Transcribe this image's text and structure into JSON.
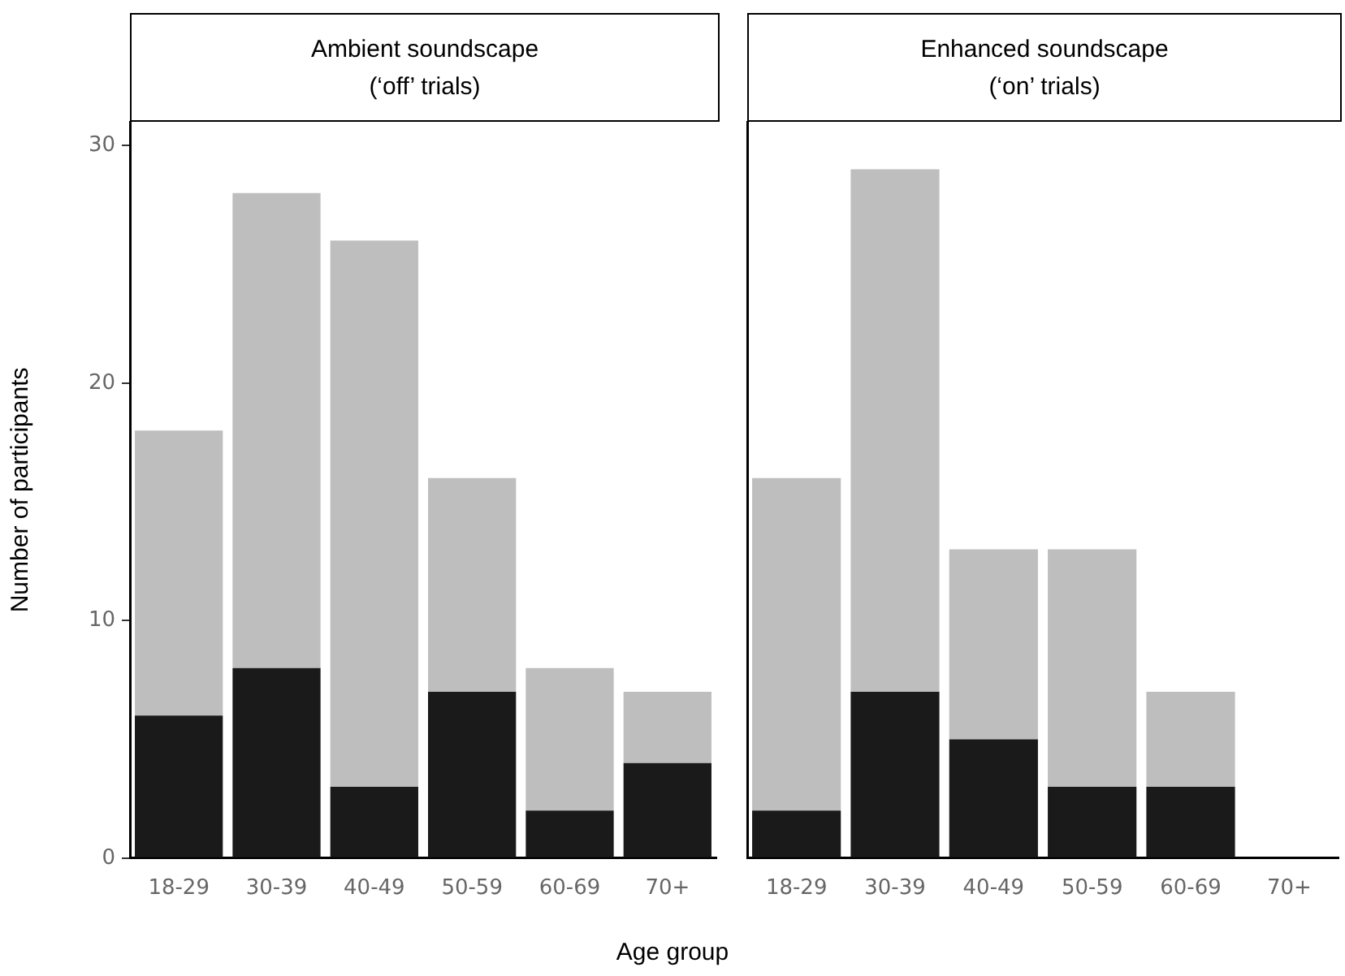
{
  "chart_data": [
    {
      "type": "bar",
      "title": "Ambient soundscape\n(‘off’ trials)",
      "xlabel": "Age group",
      "ylabel": "Number of participants",
      "categories": [
        "18-29",
        "30-39",
        "40-49",
        "50-59",
        "60-69",
        "70+"
      ],
      "stacked": true,
      "series": [
        {
          "color": "#1a1a1a",
          "values": [
            6,
            8,
            3,
            7,
            2,
            4
          ]
        },
        {
          "color": "#bebebe",
          "values": [
            12,
            20,
            23,
            9,
            6,
            3
          ]
        }
      ],
      "ylim": [
        0,
        31
      ],
      "yticks": [
        0,
        10,
        20,
        30
      ],
      "grid": false,
      "legend": false
    },
    {
      "type": "bar",
      "title": "Enhanced soundscape\n(‘on’ trials)",
      "categories": [
        "18-29",
        "30-39",
        "40-49",
        "50-59",
        "60-69",
        "70+"
      ],
      "stacked": true,
      "series": [
        {
          "color": "#1a1a1a",
          "values": [
            2,
            7,
            5,
            3,
            3,
            null
          ]
        },
        {
          "color": "#bebebe",
          "values": [
            14,
            22,
            8,
            10,
            4,
            null
          ]
        }
      ],
      "ylim": [
        0,
        31
      ],
      "yticks": [
        0,
        10,
        20,
        30
      ],
      "grid": false,
      "legend": false,
      "tick_labels": "x"
    }
  ]
}
